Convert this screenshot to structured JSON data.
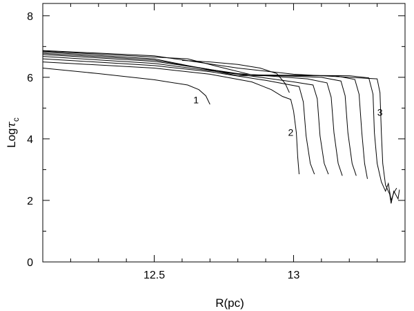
{
  "chart_data": {
    "type": "line",
    "title": "",
    "xlabel": "R(pc)",
    "ylabel_main": "Log",
    "ylabel_tau": "τ",
    "ylabel_sub": "c",
    "xlim": [
      12.1,
      13.4
    ],
    "ylim": [
      0,
      8.4
    ],
    "x_ticks": [
      {
        "value": 12.5,
        "label": "12.5"
      },
      {
        "value": 13.0,
        "label": "13"
      }
    ],
    "x_minor_ticks": [
      12.2,
      12.3,
      12.4,
      12.6,
      12.7,
      12.8,
      12.9,
      13.1,
      13.2,
      13.3
    ],
    "y_ticks": [
      {
        "value": 0,
        "label": "0"
      },
      {
        "value": 2,
        "label": "2"
      },
      {
        "value": 4,
        "label": "4"
      },
      {
        "value": 6,
        "label": "6"
      },
      {
        "value": 8,
        "label": "8"
      }
    ],
    "y_minor_ticks": [
      1,
      3,
      5,
      7
    ],
    "grid": false,
    "annotations": [
      {
        "text": "1",
        "x": 12.65,
        "y": 5.15
      },
      {
        "text": "2",
        "x": 12.99,
        "y": 4.1
      },
      {
        "text": "3",
        "x": 13.31,
        "y": 4.75
      }
    ],
    "series": [
      {
        "points": [
          [
            12.1,
            6.3
          ],
          [
            12.3,
            6.12
          ],
          [
            12.5,
            5.92
          ],
          [
            12.62,
            5.75
          ],
          [
            12.66,
            5.6
          ],
          [
            12.685,
            5.4
          ],
          [
            12.7,
            5.12
          ]
        ]
      },
      {
        "points": [
          [
            12.1,
            6.5
          ],
          [
            12.5,
            6.3
          ],
          [
            12.7,
            6.1
          ],
          [
            12.85,
            5.85
          ],
          [
            12.92,
            5.6
          ],
          [
            12.96,
            5.38
          ],
          [
            12.99,
            5.28
          ],
          [
            13.0,
            4.9
          ],
          [
            13.01,
            4.2
          ],
          [
            13.015,
            3.4
          ],
          [
            13.02,
            2.85
          ]
        ]
      },
      {
        "points": [
          [
            12.1,
            6.6
          ],
          [
            12.5,
            6.38
          ],
          [
            12.7,
            6.18
          ],
          [
            12.9,
            5.9
          ],
          [
            13.02,
            5.7
          ],
          [
            13.035,
            5.2
          ],
          [
            13.045,
            4.1
          ],
          [
            13.06,
            3.2
          ],
          [
            13.075,
            2.85
          ]
        ]
      },
      {
        "points": [
          [
            12.1,
            6.68
          ],
          [
            12.5,
            6.45
          ],
          [
            12.8,
            6.1
          ],
          [
            13.0,
            5.85
          ],
          [
            13.07,
            5.75
          ],
          [
            13.085,
            5.3
          ],
          [
            13.095,
            4.1
          ],
          [
            13.11,
            3.2
          ],
          [
            13.125,
            2.85
          ]
        ]
      },
      {
        "points": [
          [
            12.1,
            6.74
          ],
          [
            12.5,
            6.52
          ],
          [
            12.8,
            6.12
          ],
          [
            13.05,
            5.95
          ],
          [
            13.12,
            5.82
          ],
          [
            13.135,
            5.35
          ],
          [
            13.145,
            4.2
          ],
          [
            13.16,
            3.2
          ],
          [
            13.175,
            2.8
          ]
        ]
      },
      {
        "points": [
          [
            12.1,
            6.78
          ],
          [
            12.5,
            6.56
          ],
          [
            12.8,
            6.1
          ],
          [
            13.1,
            6.0
          ],
          [
            13.17,
            5.88
          ],
          [
            13.185,
            5.4
          ],
          [
            13.195,
            4.2
          ],
          [
            13.21,
            3.2
          ],
          [
            13.225,
            2.8
          ]
        ]
      },
      {
        "points": [
          [
            12.1,
            6.82
          ],
          [
            12.5,
            6.6
          ],
          [
            12.8,
            6.05
          ],
          [
            13.15,
            6.05
          ],
          [
            13.22,
            5.93
          ],
          [
            13.235,
            5.45
          ],
          [
            13.245,
            4.2
          ],
          [
            13.255,
            3.2
          ],
          [
            13.265,
            2.7
          ]
        ]
      },
      {
        "points": [
          [
            12.1,
            6.85
          ],
          [
            12.62,
            6.6
          ],
          [
            12.75,
            6.3
          ],
          [
            12.85,
            6.08
          ],
          [
            13.2,
            6.05
          ],
          [
            13.27,
            5.98
          ],
          [
            13.285,
            5.45
          ],
          [
            13.29,
            4.2
          ],
          [
            13.3,
            3.2
          ],
          [
            13.315,
            2.6
          ],
          [
            13.33,
            2.3
          ],
          [
            13.34,
            2.55
          ],
          [
            13.35,
            2.0
          ],
          [
            13.36,
            2.25
          ],
          [
            13.37,
            2.4
          ]
        ]
      },
      {
        "points": [
          [
            12.6,
            6.55
          ],
          [
            12.7,
            6.5
          ],
          [
            12.8,
            6.42
          ],
          [
            12.88,
            6.3
          ],
          [
            12.94,
            6.12
          ],
          [
            12.97,
            5.8
          ],
          [
            12.985,
            5.5
          ]
        ]
      },
      {
        "points": [
          [
            12.1,
            6.87
          ],
          [
            12.5,
            6.7
          ],
          [
            12.8,
            6.3
          ],
          [
            13.0,
            6.1
          ],
          [
            13.3,
            5.95
          ],
          [
            13.31,
            5.5
          ],
          [
            13.315,
            4.2
          ],
          [
            13.32,
            3.2
          ],
          [
            13.33,
            2.5
          ],
          [
            13.345,
            2.2
          ],
          [
            13.35,
            1.9
          ],
          [
            13.36,
            2.3
          ],
          [
            13.375,
            2.05
          ],
          [
            13.38,
            2.35
          ]
        ]
      }
    ]
  }
}
